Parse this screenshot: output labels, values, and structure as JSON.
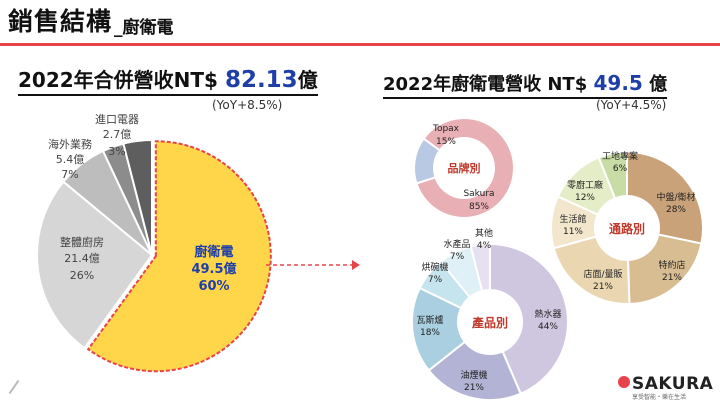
{
  "header": {
    "title": "銷售結構",
    "subtitle": "_廚衛電"
  },
  "left": {
    "heading_prefix": "2022年合併營收NT$ ",
    "heading_value": "82.13",
    "heading_suffix": "億",
    "yoy": "(YoY+8.5%)"
  },
  "right": {
    "heading_prefix": "2022年廚衛電營收 NT$ ",
    "heading_value": "49.5",
    "heading_suffix": " 億",
    "yoy": "(YoY+4.5%)"
  },
  "brand": {
    "name": "SAKURA",
    "tagline": "享受智能・樂在生活"
  },
  "colors": {
    "accent_red": "#e8434a",
    "highlight_yellow": "#ffd54a",
    "value_blue": "#1f3fa8"
  },
  "chart_data": [
    {
      "type": "pie",
      "name": "合併營收結構",
      "series": [
        {
          "name": "廚衛電",
          "value": 60,
          "amount": "49.5億",
          "color": "#ffd54a"
        },
        {
          "name": "整體廚房",
          "value": 26,
          "amount": "21.4億",
          "color": "#d6d6d6"
        },
        {
          "name": "海外業務",
          "value": 7,
          "amount": "5.4億",
          "color": "#bdbdbd"
        },
        {
          "name": "進口電器",
          "value": 3,
          "amount": "2.7億",
          "color": "#8c8c8c"
        },
        {
          "name": "",
          "value": 4,
          "amount": "",
          "color": "#5e5e5e"
        }
      ],
      "labels": [
        {
          "lines": [
            "廚衛電",
            "49.5億",
            "60%"
          ]
        },
        {
          "lines": [
            "整體廚房",
            "21.4億",
            "26%"
          ]
        },
        {
          "lines": [
            "海外業務",
            "5.4億",
            "7%"
          ]
        },
        {
          "lines": [
            "進口電器",
            "2.7億",
            "3%"
          ]
        }
      ]
    },
    {
      "type": "pie",
      "center_label": "品牌別",
      "series": [
        {
          "name": "Sakura",
          "value": 85,
          "color": "#e8b0b5"
        },
        {
          "name": "Topax",
          "value": 15,
          "color": "#b9c9e3"
        }
      ]
    },
    {
      "type": "pie",
      "center_label": "通路別",
      "series": [
        {
          "name": "中盤/衛材",
          "value": 28,
          "color": "#c9a27a"
        },
        {
          "name": "特約店",
          "value": 21,
          "color": "#d9bd92"
        },
        {
          "name": "店面/量販",
          "value": 21,
          "color": "#ead7b2"
        },
        {
          "name": "生活館",
          "value": 11,
          "color": "#f2e7cc"
        },
        {
          "name": "零廚工廠",
          "value": 12,
          "color": "#e4edc7"
        },
        {
          "name": "工地專案",
          "value": 6,
          "color": "#c8dca5"
        }
      ]
    },
    {
      "type": "pie",
      "center_label": "產品別",
      "series": [
        {
          "name": "熱水器",
          "value": 44,
          "color": "#cfc6e0"
        },
        {
          "name": "油煙機",
          "value": 21,
          "color": "#b3b3d6"
        },
        {
          "name": "瓦斯爐",
          "value": 18,
          "color": "#a9cfe0"
        },
        {
          "name": "烘碗機",
          "value": 7,
          "color": "#c6e4ee"
        },
        {
          "name": "水產品",
          "value": 7,
          "color": "#dff0f6"
        },
        {
          "name": "其他",
          "value": 4,
          "color": "#e6e0f0"
        }
      ]
    }
  ]
}
